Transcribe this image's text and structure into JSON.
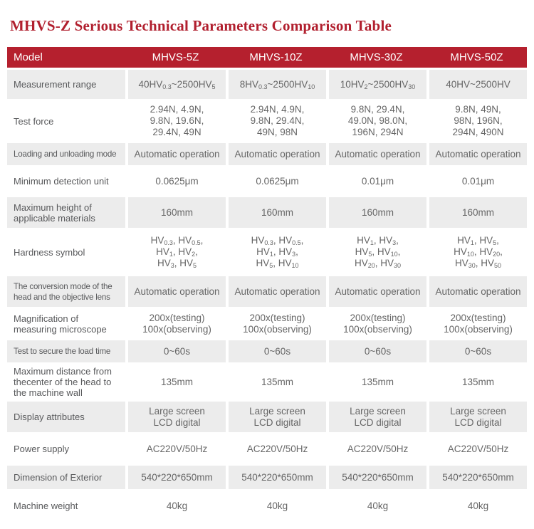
{
  "page": {
    "title": "MHVS-Z Serious Technical Parameters Comparison Table"
  },
  "colors": {
    "accent_red": "#b5202e",
    "title_red": "#b11f2e",
    "alt_row_gray": "#ececec",
    "label_text": "#58595b",
    "value_text": "#666666",
    "header_text": "#ffffff"
  },
  "table": {
    "header": {
      "label": "Model",
      "columns": [
        "MHVS-5Z",
        "MHVS-10Z",
        "MHVS-30Z",
        "MHVS-50Z"
      ]
    },
    "rows": [
      {
        "label": "Measurement range",
        "values": [
          "40HV_{0.3}~2500HV_{5}",
          "8HV_{0.3}~2500HV_{10}",
          "10HV_{2}~2500HV_{30}",
          "40HV~2500HV"
        ]
      },
      {
        "label": "Test force",
        "values": [
          "2.94N, 4.9N,\n9.8N, 19.6N,\n29.4N, 49N",
          "2.94N, 4.9N,\n9.8N, 29.4N,\n49N, 98N",
          "9.8N, 29.4N,\n49.0N, 98.0N,\n196N, 294N",
          "9.8N, 49N,\n98N, 196N,\n294N, 490N"
        ]
      },
      {
        "label": "Loading and unloading mode",
        "values": [
          "Automatic operation",
          "Automatic operation",
          "Automatic operation",
          "Automatic operation"
        ]
      },
      {
        "label": "Minimum detection unit",
        "values": [
          "0.0625μm",
          "0.0625μm",
          "0.01μm",
          "0.01μm"
        ]
      },
      {
        "label": "Maximum height of applicable materials",
        "values": [
          "160mm",
          "160mm",
          "160mm",
          "160mm"
        ]
      },
      {
        "label": "Hardness symbol",
        "values": [
          "HV_{0.3}, HV_{0.5},\nHV_{1}, HV_{2},\nHV_{3}, HV_{5}",
          "HV_{0.3}, HV_{0.5},\nHV_{1}, HV_{3},\nHV_{5}, HV_{10}",
          "HV_{1}, HV_{3},\nHV_{5}, HV_{10},\nHV_{20}, HV_{30}",
          "HV_{1}, HV_{5},\nHV_{10}, HV_{20},\nHV_{30}, HV_{50}"
        ]
      },
      {
        "label": "The conversion mode of the head and the objective lens",
        "values": [
          "Automatic operation",
          "Automatic operation",
          "Automatic operation",
          "Automatic operation"
        ]
      },
      {
        "label": "Magnification of measuring microscope",
        "values": [
          "200x(testing)\n100x(observing)",
          "200x(testing)\n100x(observing)",
          "200x(testing)\n100x(observing)",
          "200x(testing)\n100x(observing)"
        ]
      },
      {
        "label": "Test to secure the load time",
        "values": [
          "0~60s",
          "0~60s",
          "0~60s",
          "0~60s"
        ]
      },
      {
        "label": "Maximum distance from thecenter of the head to the machine wall",
        "values": [
          "135mm",
          "135mm",
          "135mm",
          "135mm"
        ]
      },
      {
        "label": "Display attributes",
        "values": [
          "Large screen\nLCD digital",
          "Large screen\nLCD digital",
          "Large screen\nLCD digital",
          "Large screen\nLCD digital"
        ]
      },
      {
        "label": "Power supply",
        "values": [
          "AC220V/50Hz",
          "AC220V/50Hz",
          "AC220V/50Hz",
          "AC220V/50Hz"
        ]
      },
      {
        "label": "Dimension of Exterior",
        "values": [
          "540*220*650mm",
          "540*220*650mm",
          "540*220*650mm",
          "540*220*650mm"
        ]
      },
      {
        "label": "Machine weight",
        "values": [
          "40kg",
          "40kg",
          "40kg",
          "40kg"
        ]
      }
    ]
  }
}
